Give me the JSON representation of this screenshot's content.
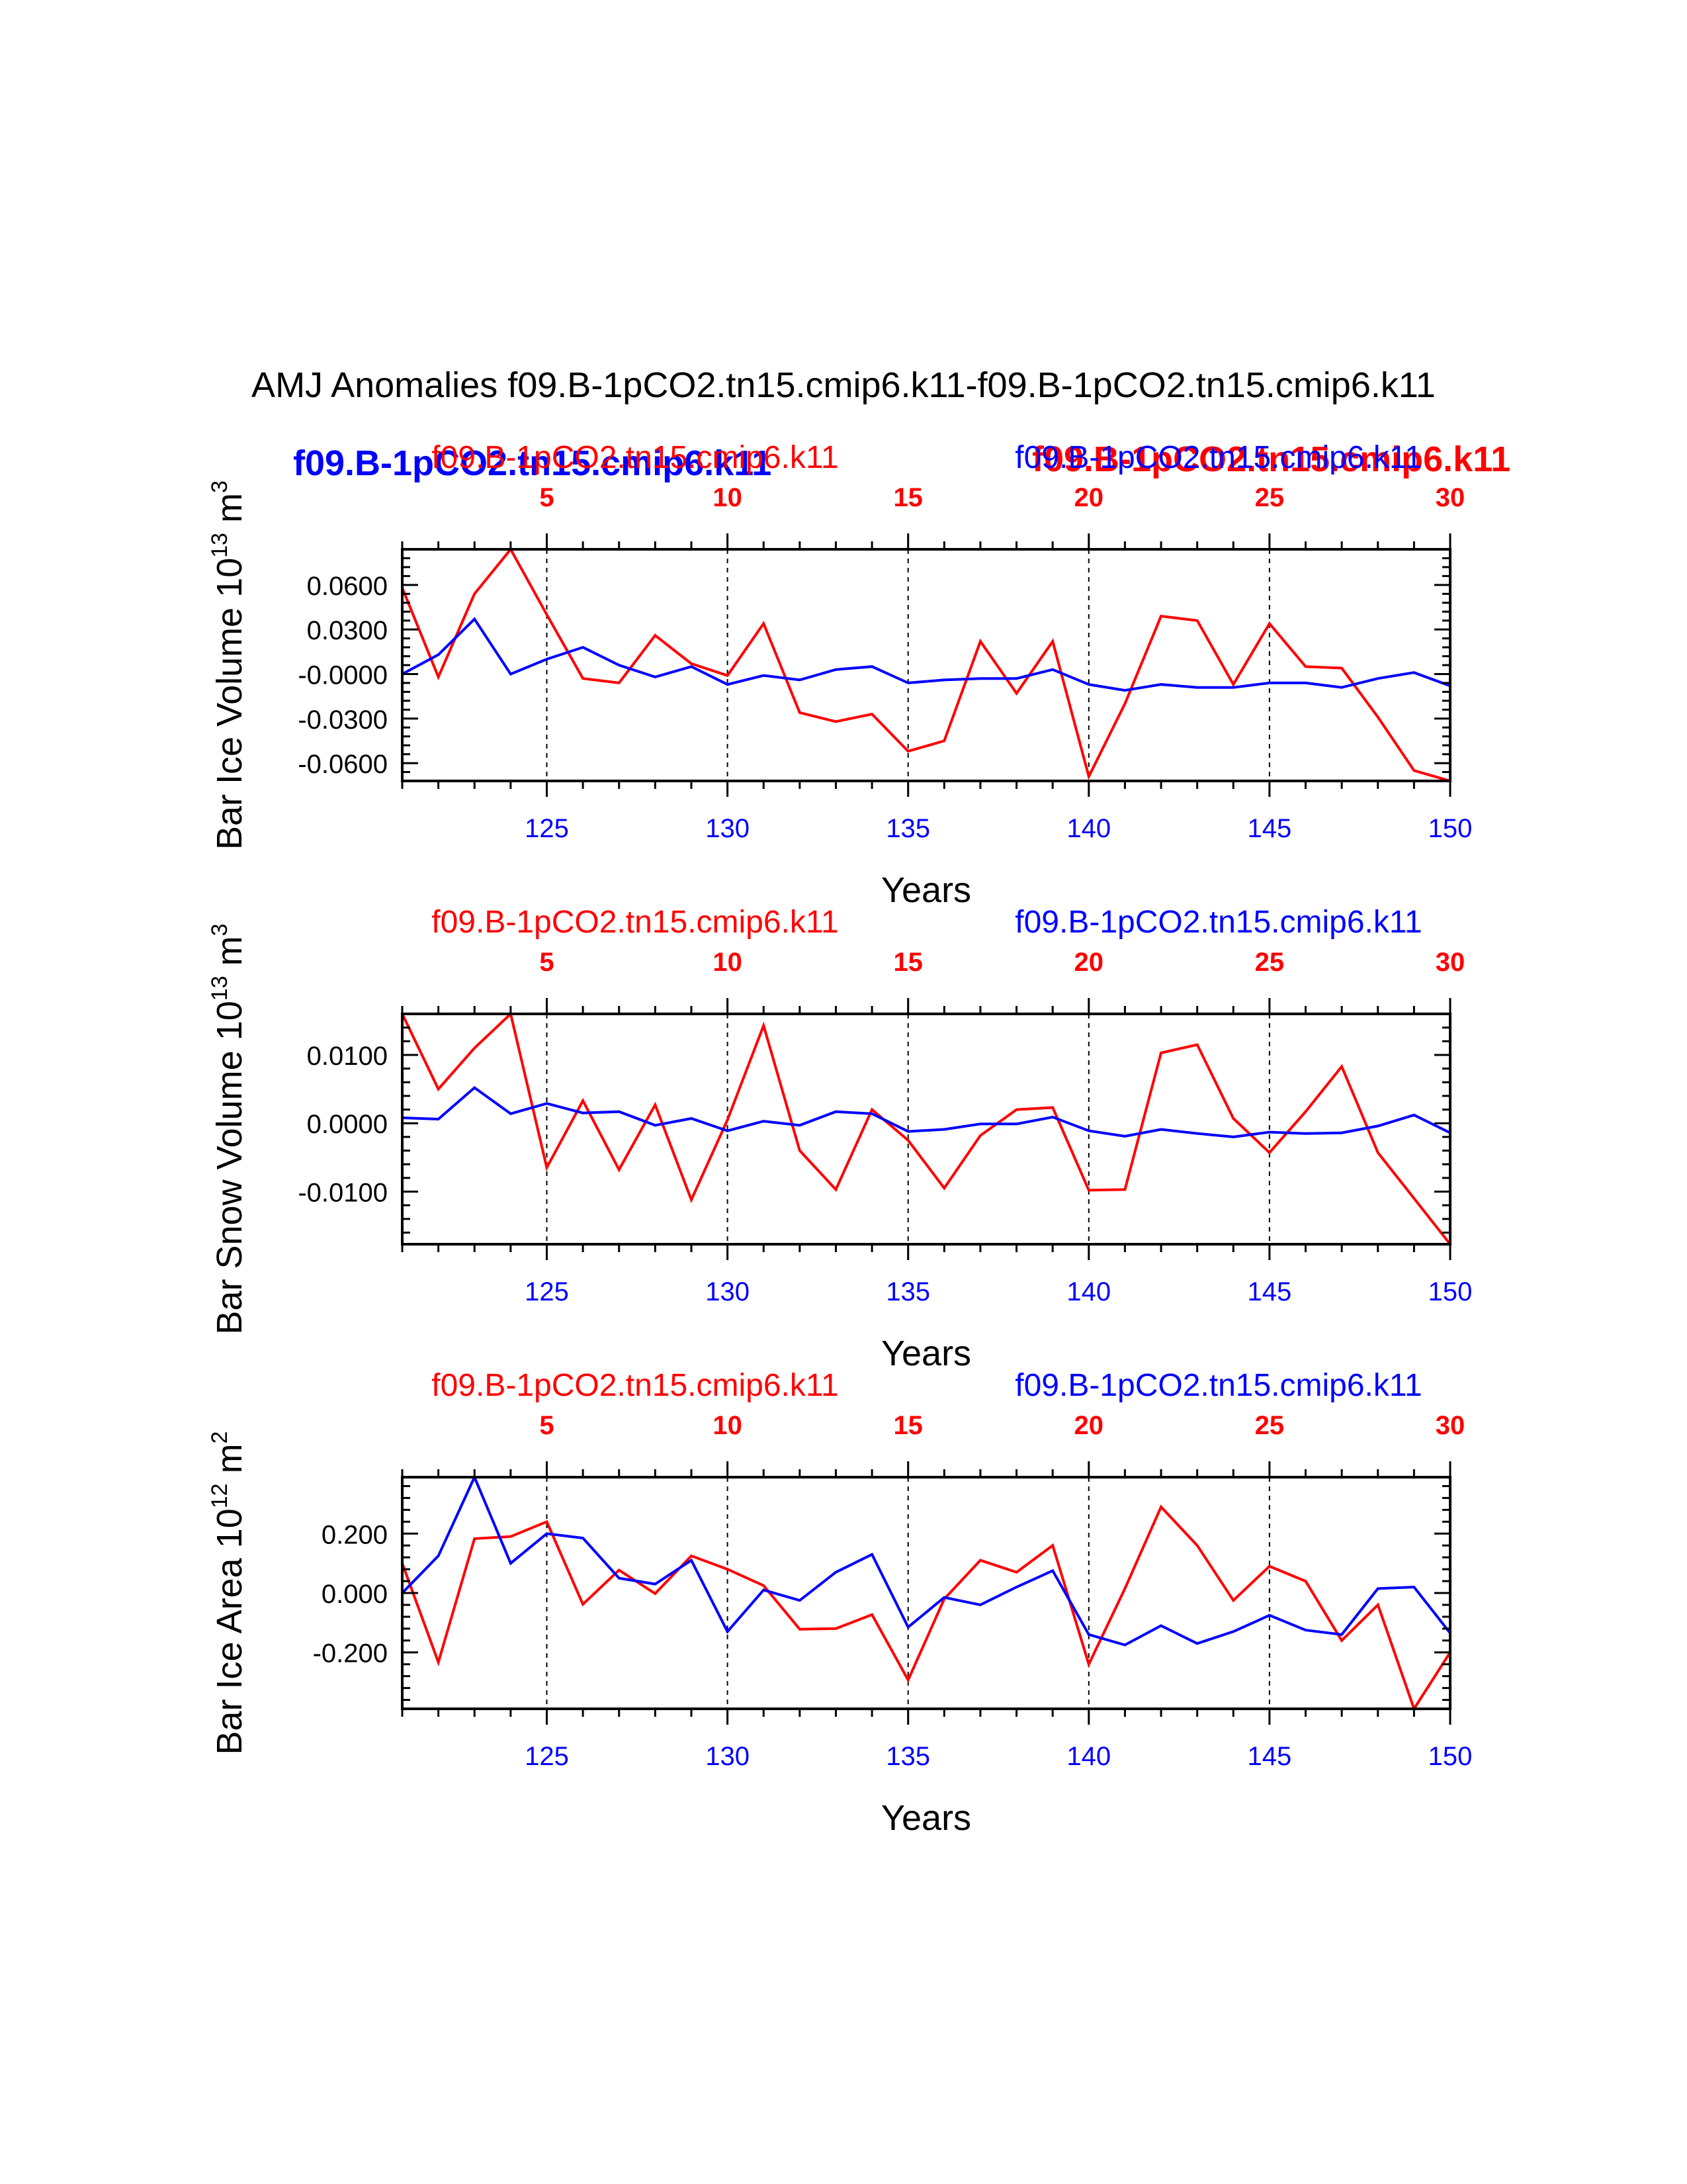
{
  "figure": {
    "title": "AMJ Anomalies f09.B-1pCO2.tn15.cmip6.k11-f09.B-1pCO2.tn15.cmip6.k11",
    "bold_labels": {
      "blue": "f09.B-1pCO2.tn15.cmip6.k11",
      "red": "f09.B-1pCO2.tn15.cmip6.k11"
    }
  },
  "colors": {
    "red": "#ff0000",
    "blue": "#0000ff",
    "axis": "#000000"
  },
  "chart_data": [
    {
      "type": "line",
      "ylabel": "Bar Ice Volume 10",
      "ylabel_exp": "13",
      "ylabel_unit": " m",
      "ylabel_unit_exp": "3",
      "xlabel": "Years",
      "top_label_left": "f09.B-1pCO2.tn15.cmip6.k11",
      "top_label_right": "f09.B-1pCO2.tn15.cmip6.k11",
      "xlim": [
        121,
        150
      ],
      "ylim": [
        -0.072,
        0.084
      ],
      "ytick_values": [
        0.06,
        0.03,
        0.0,
        -0.03,
        -0.06
      ],
      "ytick_labels": [
        "0.0600",
        "0.0300",
        "-0.0000",
        "-0.0300",
        "-0.0600"
      ],
      "bottom_tick_values": [
        125,
        130,
        135,
        140,
        145,
        150
      ],
      "bottom_tick_labels": [
        "125",
        "130",
        "135",
        "140",
        "145",
        "150"
      ],
      "top_tick_labels": [
        "5",
        "10",
        "15",
        "20",
        "25",
        "30"
      ],
      "x": [
        121,
        122,
        123,
        124,
        125,
        126,
        127,
        128,
        129,
        130,
        131,
        132,
        133,
        134,
        135,
        136,
        137,
        138,
        139,
        140,
        141,
        142,
        143,
        144,
        145,
        146,
        147,
        148,
        149,
        150
      ],
      "series": [
        {
          "name": "f09.B-1pCO2.tn15.cmip6.k11 (red)",
          "color": "red",
          "values": [
            0.058,
            -0.002,
            0.054,
            0.084,
            0.04,
            -0.003,
            -0.006,
            0.026,
            0.007,
            -0.001,
            0.034,
            -0.026,
            -0.032,
            -0.027,
            -0.052,
            -0.045,
            0.022,
            -0.013,
            0.022,
            -0.069,
            -0.02,
            0.039,
            0.036,
            -0.007,
            0.034,
            0.005,
            0.004,
            -0.029,
            -0.065,
            -0.072
          ]
        },
        {
          "name": "f09.B-1pCO2.tn15.cmip6.k11 (blue)",
          "color": "blue",
          "values": [
            0.0,
            0.013,
            0.037,
            0.0,
            0.01,
            0.018,
            0.006,
            -0.002,
            0.005,
            -0.007,
            -0.001,
            -0.004,
            0.003,
            0.005,
            -0.006,
            -0.004,
            -0.003,
            -0.003,
            0.003,
            -0.007,
            -0.011,
            -0.007,
            -0.009,
            -0.009,
            -0.006,
            -0.006,
            -0.009,
            -0.003,
            0.001,
            -0.008
          ]
        }
      ]
    },
    {
      "type": "line",
      "ylabel": "Bar Snow Volume 10",
      "ylabel_exp": "13",
      "ylabel_unit": " m",
      "ylabel_unit_exp": "3",
      "xlabel": "Years",
      "top_label_left": "f09.B-1pCO2.tn15.cmip6.k11",
      "top_label_right": "f09.B-1pCO2.tn15.cmip6.k11",
      "xlim": [
        121,
        150
      ],
      "ylim": [
        -0.0177,
        0.016
      ],
      "ytick_values": [
        0.01,
        0.0,
        -0.01
      ],
      "ytick_labels": [
        "0.0100",
        "0.0000",
        "-0.0100"
      ],
      "bottom_tick_values": [
        125,
        130,
        135,
        140,
        145,
        150
      ],
      "bottom_tick_labels": [
        "125",
        "130",
        "135",
        "140",
        "145",
        "150"
      ],
      "top_tick_labels": [
        "5",
        "10",
        "15",
        "20",
        "25",
        "30"
      ],
      "x": [
        121,
        122,
        123,
        124,
        125,
        126,
        127,
        128,
        129,
        130,
        131,
        132,
        133,
        134,
        135,
        136,
        137,
        138,
        139,
        140,
        141,
        142,
        143,
        144,
        145,
        146,
        147,
        148,
        149,
        150
      ],
      "series": [
        {
          "name": "f09.B-1pCO2.tn15.cmip6.k11 (red)",
          "color": "red",
          "values": [
            0.016,
            0.005,
            0.011,
            0.016,
            -0.0065,
            0.0033,
            -0.0068,
            0.0027,
            -0.0112,
            0.0005,
            0.0143,
            -0.004,
            -0.0097,
            0.002,
            -0.0025,
            -0.0095,
            -0.0018,
            0.002,
            0.0023,
            -0.0098,
            -0.0097,
            0.0103,
            0.0115,
            0.0007,
            -0.0043,
            0.0017,
            0.0083,
            -0.0043,
            -0.011,
            -0.0177
          ]
        },
        {
          "name": "f09.B-1pCO2.tn15.cmip6.k11 (blue)",
          "color": "blue",
          "values": [
            0.0008,
            0.0006,
            0.0052,
            0.0014,
            0.0029,
            0.0015,
            0.0017,
            -0.0003,
            0.0007,
            -0.0011,
            0.0003,
            -0.0003,
            0.0017,
            0.0014,
            -0.0012,
            -0.0009,
            -0.0001,
            -0.0001,
            0.0009,
            -0.0011,
            -0.0019,
            -0.0009,
            -0.0015,
            -0.002,
            -0.0013,
            -0.0015,
            -0.0014,
            -0.0004,
            0.0012,
            -0.0014
          ]
        }
      ]
    },
    {
      "type": "line",
      "ylabel": "Bar Ice Area 10",
      "ylabel_exp": "12",
      "ylabel_unit": " m",
      "ylabel_unit_exp": "2",
      "xlabel": "Years",
      "top_label_left": "f09.B-1pCO2.tn15.cmip6.k11",
      "top_label_right": "f09.B-1pCO2.tn15.cmip6.k11",
      "xlim": [
        121,
        150
      ],
      "ylim": [
        -0.39,
        0.39
      ],
      "ytick_values": [
        0.2,
        0.0,
        -0.2
      ],
      "ytick_labels": [
        "0.200",
        "0.000",
        "-0.200"
      ],
      "bottom_tick_values": [
        125,
        130,
        135,
        140,
        145,
        150
      ],
      "bottom_tick_labels": [
        "125",
        "130",
        "135",
        "140",
        "145",
        "150"
      ],
      "top_tick_labels": [
        "5",
        "10",
        "15",
        "20",
        "25",
        "30"
      ],
      "x": [
        121,
        122,
        123,
        124,
        125,
        126,
        127,
        128,
        129,
        130,
        131,
        132,
        133,
        134,
        135,
        136,
        137,
        138,
        139,
        140,
        141,
        142,
        143,
        144,
        145,
        146,
        147,
        148,
        149,
        150
      ],
      "series": [
        {
          "name": "f09.B-1pCO2.tn15.cmip6.k11 (red)",
          "color": "red",
          "values": [
            0.1,
            -0.233,
            0.183,
            0.19,
            0.24,
            -0.038,
            0.077,
            -0.002,
            0.125,
            0.08,
            0.025,
            -0.122,
            -0.12,
            -0.073,
            -0.293,
            -0.02,
            0.11,
            0.07,
            0.16,
            -0.24,
            0.015,
            0.29,
            0.16,
            -0.025,
            0.09,
            0.04,
            -0.16,
            -0.04,
            -0.39,
            -0.2
          ]
        },
        {
          "name": "f09.B-1pCO2.tn15.cmip6.k11 (blue)",
          "color": "blue",
          "values": [
            0.0,
            0.125,
            0.39,
            0.1,
            0.2,
            0.185,
            0.05,
            0.03,
            0.11,
            -0.13,
            0.01,
            -0.025,
            0.07,
            0.13,
            -0.115,
            -0.015,
            -0.04,
            0.02,
            0.075,
            -0.14,
            -0.175,
            -0.11,
            -0.17,
            -0.13,
            -0.075,
            -0.125,
            -0.14,
            0.015,
            0.02,
            -0.135
          ]
        }
      ]
    }
  ]
}
